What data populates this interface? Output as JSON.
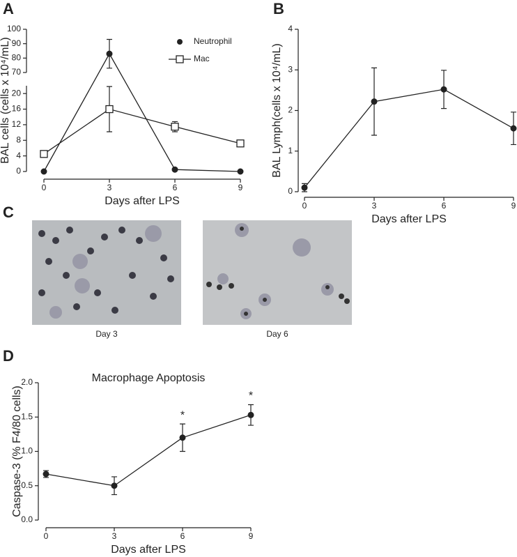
{
  "figure": {
    "letters": [
      "A",
      "B",
      "C",
      "D"
    ]
  },
  "images": {
    "captions": [
      "Day 3",
      "Day 6"
    ]
  },
  "chart_data": [
    {
      "type": "line",
      "broken_axis": true,
      "xlabel": "Days after LPS",
      "ylabel": "BAL cells (cells x 10⁴/mL)",
      "x": [
        0,
        3,
        6,
        9
      ],
      "xlim": [
        0,
        9
      ],
      "xticks": [
        0,
        3,
        6,
        9
      ],
      "ylim_lower": [
        0,
        22
      ],
      "ylim_upper": [
        70,
        100
      ],
      "yticks": [
        0,
        4,
        8,
        12,
        16,
        20,
        70,
        80,
        90,
        100
      ],
      "legend": "upper right",
      "series": [
        {
          "name": "Neutrophil",
          "color": "#222",
          "marker": "circle",
          "filled": true,
          "values": [
            0,
            83,
            0.5,
            0
          ],
          "errors": [
            0,
            10,
            0,
            0
          ]
        },
        {
          "name": "Mac",
          "color": "#222",
          "marker": "square",
          "filled": false,
          "values": [
            4.5,
            16,
            11.5,
            7.2
          ],
          "errors": [
            0.8,
            5.8,
            1.3,
            0.6
          ]
        }
      ]
    },
    {
      "type": "line",
      "xlabel": "Days after LPS",
      "ylabel": "BAL Lymph(cells x 10⁴/mL)",
      "x": [
        0,
        3,
        6,
        9
      ],
      "xlim": [
        0,
        9
      ],
      "xticks": [
        0,
        3,
        6,
        9
      ],
      "ylim": [
        0,
        4
      ],
      "yticks": [
        0,
        1,
        2,
        3,
        4
      ],
      "series": [
        {
          "color": "#222",
          "marker": "circle",
          "filled": true,
          "values": [
            0.1,
            2.22,
            2.52,
            1.56
          ],
          "errors": [
            0.1,
            0.83,
            0.47,
            0.4
          ]
        }
      ]
    },
    {
      "type": "line",
      "title": "Macrophage Apoptosis",
      "xlabel": "Days after LPS",
      "ylabel": "Caspase-3 (% F4/80 cells)",
      "x": [
        0,
        3,
        6,
        9
      ],
      "xlim": [
        0,
        9
      ],
      "xticks": [
        0,
        3,
        6,
        9
      ],
      "ylim": [
        0,
        2
      ],
      "yticks": [
        {
          "value": 0,
          "label": "0.0"
        },
        0.5,
        {
          "value": 1,
          "label": "1.0"
        },
        1.5,
        {
          "value": 2,
          "label": "2.0"
        }
      ],
      "annotations": [
        {
          "x": 6,
          "text": "*"
        },
        {
          "x": 9,
          "text": "*"
        }
      ],
      "series": [
        {
          "color": "#222",
          "marker": "circle",
          "filled": true,
          "values": [
            0.67,
            0.5,
            1.2,
            1.53
          ],
          "errors": [
            0.05,
            0.13,
            0.2,
            0.15
          ]
        }
      ]
    }
  ]
}
